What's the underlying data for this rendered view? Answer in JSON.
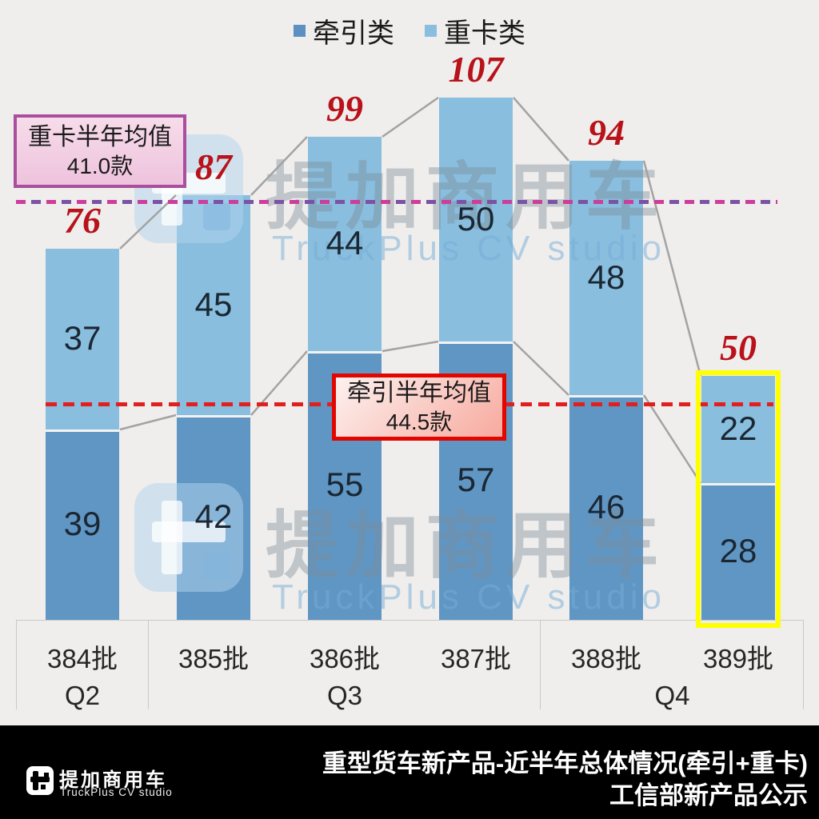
{
  "legend": {
    "items": [
      {
        "label": "牵引类",
        "color": "#5b90c0"
      },
      {
        "label": "重卡类",
        "color": "#89bede"
      }
    ]
  },
  "annotations": {
    "heavy_avg": {
      "line1": "重卡半年均值",
      "line2": "41.0款"
    },
    "tractor_avg": {
      "line1": "牵引半年均值",
      "line2": "44.5款"
    }
  },
  "chart_data": {
    "type": "bar",
    "subtype": "stacked",
    "categories": [
      "384批",
      "385批",
      "386批",
      "387批",
      "388批",
      "389批"
    ],
    "quarter_groups": [
      {
        "label": "Q2",
        "span": [
          0,
          0
        ]
      },
      {
        "label": "Q3",
        "span": [
          1,
          3
        ]
      },
      {
        "label": "Q4",
        "span": [
          4,
          5
        ]
      }
    ],
    "series": [
      {
        "name": "牵引类",
        "color": "#6096c4",
        "values": [
          39,
          42,
          55,
          57,
          46,
          28
        ]
      },
      {
        "name": "重卡类",
        "color": "#89bede",
        "values": [
          37,
          45,
          44,
          50,
          48,
          22
        ]
      }
    ],
    "totals": [
      76,
      87,
      99,
      107,
      94,
      50
    ],
    "totals_color": "#b8121a",
    "highlight_category_index": 5,
    "highlight_color": "#ffff00",
    "reference_lines": [
      {
        "name": "牵引半年均值",
        "value": 44.5,
        "value_label": "44.5款",
        "color": "#e01f1f",
        "style": "dashed"
      },
      {
        "name": "重卡半年均值",
        "value": 41.0,
        "value_label": "41.0款",
        "stacked_position": 85.5,
        "color": "#cd3d9c",
        "style": "dashed"
      }
    ],
    "connector_lines": "between consecutive bar tops of totals and of 牵引类 segment tops",
    "ylim": [
      0,
      115
    ],
    "grid": false,
    "legend_position": "top-center"
  },
  "watermark": {
    "text_cn": "提加商用车",
    "text_en": "TruckPlus CV studio"
  },
  "footer": {
    "title_line1": "重型货车新产品-近半年总体情况(牵引+重卡)",
    "title_line2": "工信部新产品公示",
    "brand_cn": "提加商用车",
    "brand_en": "TruckPlus CV studio"
  }
}
